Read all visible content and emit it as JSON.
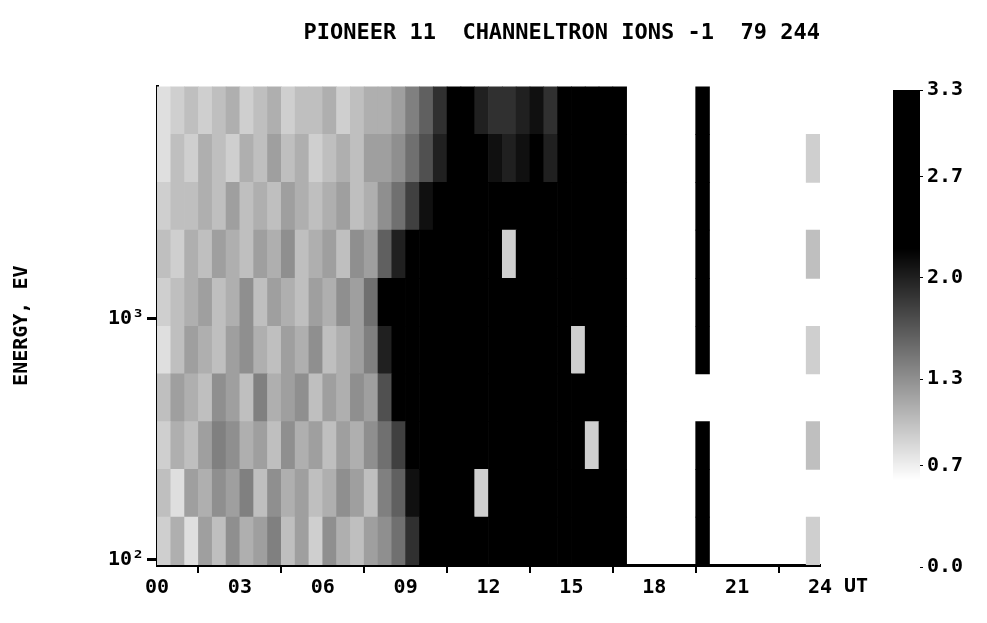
{
  "chart_data": {
    "type": "heatmap",
    "title": "PIONEER 11  CHANNELTRON IONS -1  79 244",
    "ylabel": "ENERGY, EV",
    "xlabel": "UT",
    "log": "y",
    "grid": false,
    "xlim": [
      0,
      24
    ],
    "xticks": [
      {
        "value": 0,
        "label": "00"
      },
      {
        "value": 3,
        "label": "03"
      },
      {
        "value": 6,
        "label": "06"
      },
      {
        "value": 9,
        "label": "09"
      },
      12,
      15,
      18,
      21,
      24
    ],
    "ylim": [
      95,
      9200
    ],
    "yticks": [
      {
        "value": 100,
        "label": "10²"
      },
      {
        "value": 1000,
        "label": "10³"
      }
    ],
    "x_bins": [
      0,
      0.5,
      1,
      1.5,
      2,
      2.5,
      3,
      3.5,
      4,
      4.5,
      5,
      5.5,
      6,
      6.5,
      7,
      7.5,
      8,
      8.5,
      9,
      9.5,
      10,
      10.5,
      11,
      11.5,
      12,
      12.5,
      13,
      13.5,
      14,
      14.5,
      15,
      15.5,
      16,
      16.5,
      17,
      17.5,
      18,
      18.5,
      19,
      19.5,
      20,
      20.5,
      21,
      21.5,
      22,
      22.5,
      23,
      23.5,
      24
    ],
    "y_bins": [
      95,
      150,
      237,
      374,
      590,
      930,
      1470,
      2330,
      3680,
      5820,
      9200
    ],
    "cells": [
      [
        0.9,
        1.1,
        0.8,
        1.2,
        1.0,
        1.3,
        1.1,
        1.2,
        1.4,
        1.0,
        1.2,
        0.9,
        1.3,
        1.1,
        1.0,
        1.2,
        1.3,
        1.5,
        1.9,
        2.7,
        3.0,
        3.1,
        2.9,
        3.2,
        3.0,
        2.8,
        3.1,
        3.0,
        3.2,
        2.9,
        3.1,
        3.0,
        2.8,
        3.0,
        null,
        null,
        null,
        null,
        null,
        3.0,
        null,
        null,
        null,
        null,
        null,
        null,
        null,
        0.9
      ],
      [
        1.0,
        0.8,
        1.2,
        1.1,
        1.3,
        1.2,
        1.4,
        1.0,
        1.3,
        1.1,
        1.2,
        1.0,
        1.1,
        1.3,
        1.2,
        1.0,
        1.4,
        1.6,
        2.1,
        2.9,
        3.1,
        3.0,
        3.2,
        0.9,
        3.1,
        3.0,
        2.9,
        3.2,
        3.0,
        3.1,
        2.8,
        3.0,
        3.1,
        2.7,
        null,
        null,
        null,
        null,
        null,
        3.0,
        null,
        null,
        null,
        null,
        null,
        null,
        null,
        null
      ],
      [
        0.9,
        1.1,
        1.0,
        1.2,
        1.4,
        1.3,
        1.1,
        1.2,
        1.0,
        1.3,
        1.1,
        1.2,
        1.0,
        1.2,
        1.1,
        1.3,
        1.5,
        1.8,
        2.3,
        3.0,
        3.1,
        2.9,
        3.0,
        3.2,
        3.1,
        3.0,
        2.9,
        3.1,
        3.0,
        3.2,
        3.0,
        0.9,
        3.0,
        2.6,
        null,
        null,
        null,
        null,
        null,
        3.0,
        null,
        null,
        null,
        null,
        null,
        null,
        null,
        1.0
      ],
      [
        1.0,
        1.2,
        1.1,
        1.0,
        1.3,
        1.2,
        1.0,
        1.4,
        1.1,
        1.2,
        1.3,
        1.0,
        1.2,
        1.1,
        1.3,
        1.2,
        1.7,
        2.2,
        2.8,
        3.0,
        3.1,
        2.9,
        3.0,
        3.2,
        3.1,
        3.0,
        2.9,
        3.1,
        3.0,
        3.2,
        3.0,
        2.9,
        3.1,
        2.7,
        null,
        null,
        null,
        null,
        null,
        null,
        null,
        null,
        null,
        null,
        null,
        null,
        null,
        null
      ],
      [
        0.8,
        1.0,
        1.2,
        1.1,
        1.0,
        1.2,
        1.3,
        1.1,
        1.0,
        1.2,
        1.1,
        1.3,
        1.0,
        1.1,
        1.2,
        1.4,
        2.0,
        2.7,
        3.0,
        2.9,
        3.1,
        3.0,
        3.2,
        3.0,
        3.1,
        2.9,
        3.0,
        3.2,
        3.1,
        3.0,
        0.9,
        3.1,
        3.0,
        2.8,
        null,
        null,
        null,
        null,
        null,
        3.0,
        null,
        null,
        null,
        null,
        null,
        null,
        null,
        0.9
      ],
      [
        0.9,
        1.0,
        1.1,
        1.2,
        1.0,
        1.1,
        1.3,
        1.0,
        1.2,
        1.1,
        1.0,
        1.2,
        1.1,
        1.3,
        1.2,
        1.5,
        2.4,
        2.9,
        3.0,
        3.1,
        2.9,
        3.0,
        3.2,
        3.0,
        3.1,
        3.0,
        2.9,
        3.1,
        3.0,
        3.2,
        3.0,
        2.9,
        3.1,
        2.6,
        null,
        null,
        null,
        null,
        null,
        3.0,
        null,
        null,
        null,
        null,
        null,
        null,
        null,
        null
      ],
      [
        1.0,
        0.9,
        1.1,
        1.0,
        1.2,
        1.1,
        1.0,
        1.2,
        1.1,
        1.3,
        1.0,
        1.1,
        1.2,
        1.0,
        1.3,
        1.2,
        1.6,
        2.0,
        2.3,
        2.8,
        3.0,
        3.1,
        2.9,
        3.0,
        3.1,
        0.9,
        3.0,
        3.2,
        3.0,
        3.1,
        2.9,
        3.0,
        3.1,
        2.7,
        null,
        null,
        null,
        null,
        null,
        3.0,
        null,
        null,
        null,
        null,
        null,
        null,
        null,
        1.0
      ],
      [
        0.9,
        1.0,
        1.0,
        1.1,
        1.0,
        1.2,
        1.0,
        1.1,
        1.0,
        1.2,
        1.1,
        1.0,
        1.1,
        1.2,
        1.0,
        1.1,
        1.3,
        1.5,
        1.8,
        2.1,
        2.7,
        3.0,
        2.9,
        3.1,
        3.0,
        2.8,
        3.1,
        3.0,
        2.9,
        3.0,
        3.1,
        3.0,
        2.9,
        2.6,
        null,
        null,
        null,
        null,
        null,
        3.1,
        null,
        null,
        null,
        null,
        null,
        null,
        null,
        null
      ],
      [
        0.8,
        1.0,
        0.9,
        1.1,
        1.0,
        0.9,
        1.1,
        1.0,
        1.2,
        1.0,
        1.1,
        0.9,
        1.0,
        1.1,
        1.0,
        1.2,
        1.2,
        1.3,
        1.5,
        1.7,
        2.0,
        2.6,
        2.4,
        2.2,
        2.1,
        2.0,
        2.1,
        2.2,
        2.0,
        2.3,
        2.5,
        2.8,
        3.0,
        2.7,
        null,
        null,
        null,
        null,
        null,
        3.1,
        null,
        null,
        null,
        null,
        null,
        null,
        null,
        0.9
      ],
      [
        0.8,
        0.9,
        1.0,
        0.9,
        1.0,
        1.1,
        0.9,
        1.0,
        1.1,
        0.9,
        1.0,
        1.0,
        1.1,
        0.9,
        1.0,
        1.1,
        1.1,
        1.2,
        1.4,
        1.6,
        1.9,
        2.5,
        2.2,
        2.0,
        1.9,
        1.9,
        2.0,
        2.1,
        1.9,
        2.2,
        2.4,
        2.7,
        2.9,
        2.6,
        null,
        null,
        null,
        null,
        null,
        2.8,
        null,
        null,
        null,
        null,
        null,
        null,
        null,
        null
      ]
    ],
    "colorbar_range": [
      0,
      3.3
    ],
    "colorbar_ticks": [
      {
        "value": 0,
        "label": "0.0"
      },
      0.7,
      1.3,
      {
        "value": 2,
        "label": "2.0"
      },
      2.7,
      3.3
    ]
  }
}
